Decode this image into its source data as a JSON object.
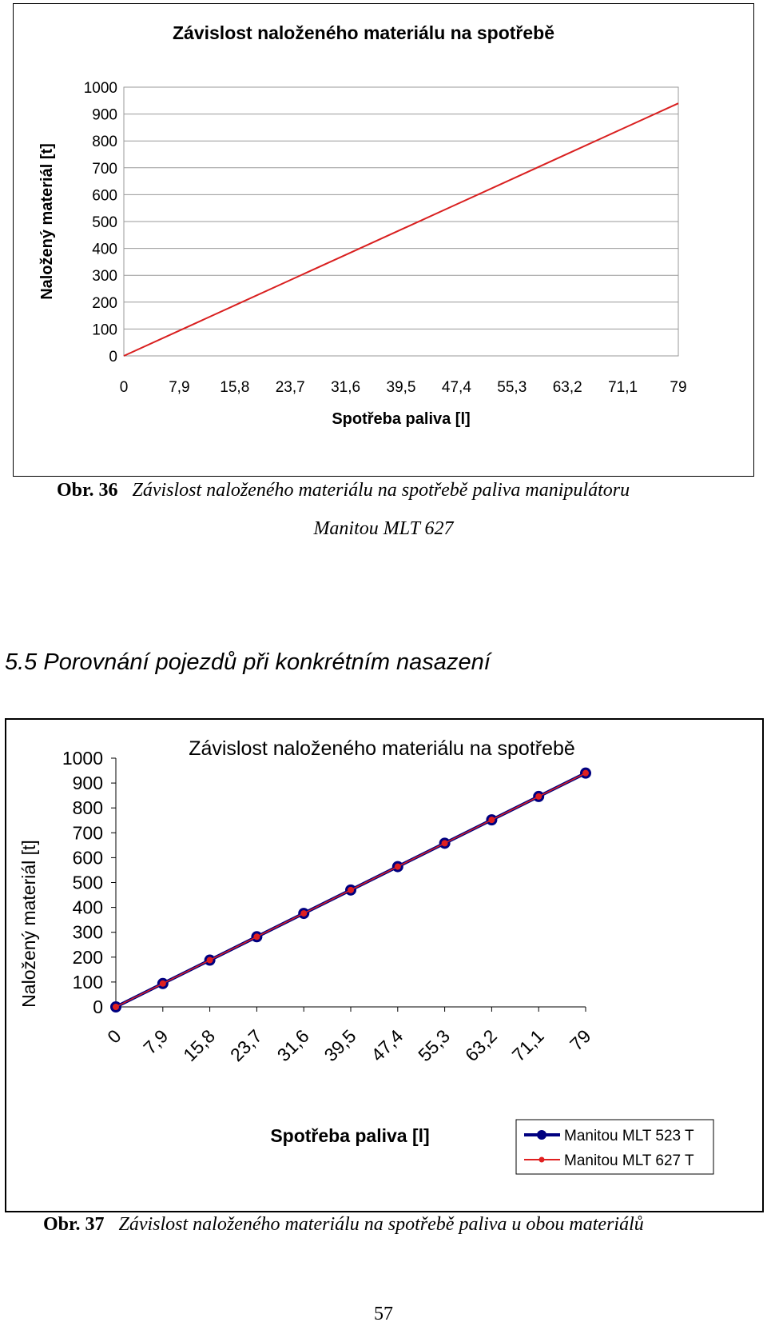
{
  "chart_data": [
    {
      "type": "line",
      "title": "Závislost naloženého materiálu na spotřebě",
      "xlabel": "Spotřeba paliva [l]",
      "ylabel": "Naložený materiál [t]",
      "categories": [
        "0",
        "7,9",
        "15,8",
        "23,7",
        "31,6",
        "39,5",
        "47,4",
        "55,3",
        "63,2",
        "71,1",
        "79"
      ],
      "x": [
        0,
        7.9,
        15.8,
        23.7,
        31.6,
        39.5,
        47.4,
        55.3,
        63.2,
        71.1,
        79
      ],
      "yticks": [
        "0",
        "100",
        "200",
        "300",
        "400",
        "500",
        "600",
        "700",
        "800",
        "900",
        "1000"
      ],
      "ylim": [
        0,
        1000
      ],
      "grid": true,
      "series": [
        {
          "values": [
            0,
            94,
            188,
            282,
            376,
            470,
            564,
            658,
            752,
            846,
            940
          ],
          "color": "#d92020",
          "marker": "none"
        }
      ]
    },
    {
      "type": "line",
      "title": "Závislost naloženého materiálu na spotřebě",
      "xlabel": "Spotřeba paliva [l]",
      "ylabel": "Naložený materiál [t]",
      "categories": [
        "0",
        "7,9",
        "15,8",
        "23,7",
        "31,6",
        "39,5",
        "47,4",
        "55,3",
        "63,2",
        "71,1",
        "79"
      ],
      "x": [
        0,
        7.9,
        15.8,
        23.7,
        31.6,
        39.5,
        47.4,
        55.3,
        63.2,
        71.1,
        79
      ],
      "yticks": [
        "0",
        "100",
        "200",
        "300",
        "400",
        "500",
        "600",
        "700",
        "800",
        "900",
        "1000"
      ],
      "ylim": [
        0,
        1000
      ],
      "grid": false,
      "legend": "bottom-right",
      "series": [
        {
          "name": "Manitou MLT 523 T",
          "values": [
            0,
            94,
            188,
            282,
            376,
            470,
            564,
            658,
            752,
            846,
            940
          ],
          "color": "#000080",
          "marker": "circle"
        },
        {
          "name": "Manitou MLT 627 T",
          "values": [
            0,
            94,
            188,
            282,
            376,
            470,
            564,
            658,
            752,
            846,
            940
          ],
          "color": "#e02020",
          "marker": "dot"
        }
      ]
    }
  ],
  "caption1": {
    "label": "Obr. 36",
    "text": "Závislost naloženého materiálu na spotřebě paliva manipulátoru",
    "text2": "Manitou MLT 627"
  },
  "heading": "5.5 Porovnání pojezdů při konkrétním nasazení",
  "caption2": {
    "label": "Obr. 37",
    "text": "Závislost naloženého materiálu na spotřebě paliva u obou materiálů"
  },
  "page_number": "57"
}
